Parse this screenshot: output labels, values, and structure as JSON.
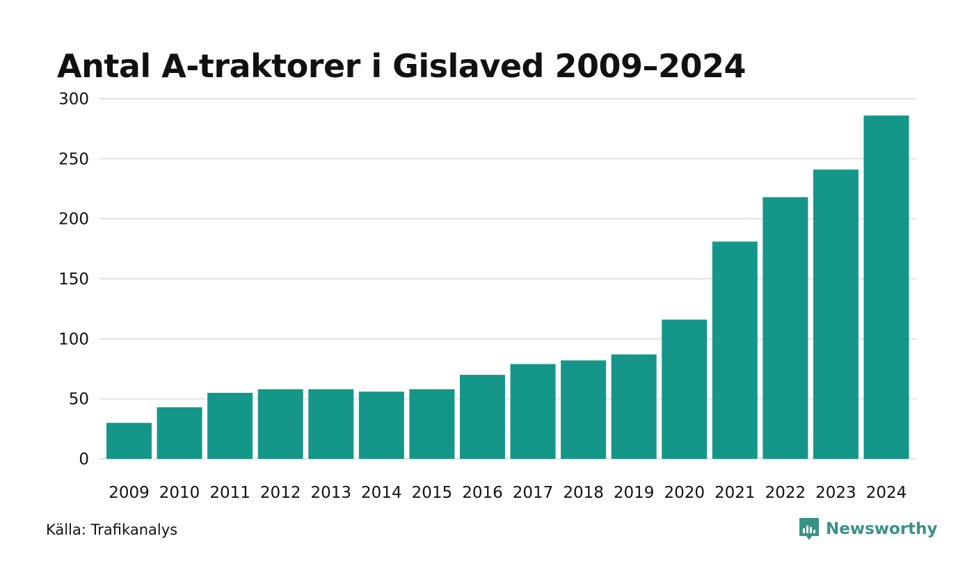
{
  "header": {
    "title": "Antal A-traktorer i Gislaved 2009–2024"
  },
  "footer": {
    "source": "Källa: Trafikanalys",
    "brand": "Newsworthy"
  },
  "colors": {
    "bar": "#149788",
    "grid": "#e3e3e3",
    "brand": "#3a9186"
  },
  "chart_data": {
    "type": "bar",
    "title": "Antal A-traktorer i Gislaved 2009–2024",
    "xlabel": "",
    "ylabel": "",
    "categories": [
      "2009",
      "2010",
      "2011",
      "2012",
      "2013",
      "2014",
      "2015",
      "2016",
      "2017",
      "2018",
      "2019",
      "2020",
      "2021",
      "2022",
      "2023",
      "2024"
    ],
    "values": [
      30,
      43,
      55,
      58,
      58,
      56,
      58,
      70,
      79,
      82,
      87,
      116,
      181,
      218,
      241,
      286
    ],
    "ylim": [
      0,
      300
    ],
    "yticks": [
      "0",
      "50",
      "100",
      "150",
      "200",
      "250",
      "300"
    ],
    "grid": true,
    "legend": "none"
  }
}
